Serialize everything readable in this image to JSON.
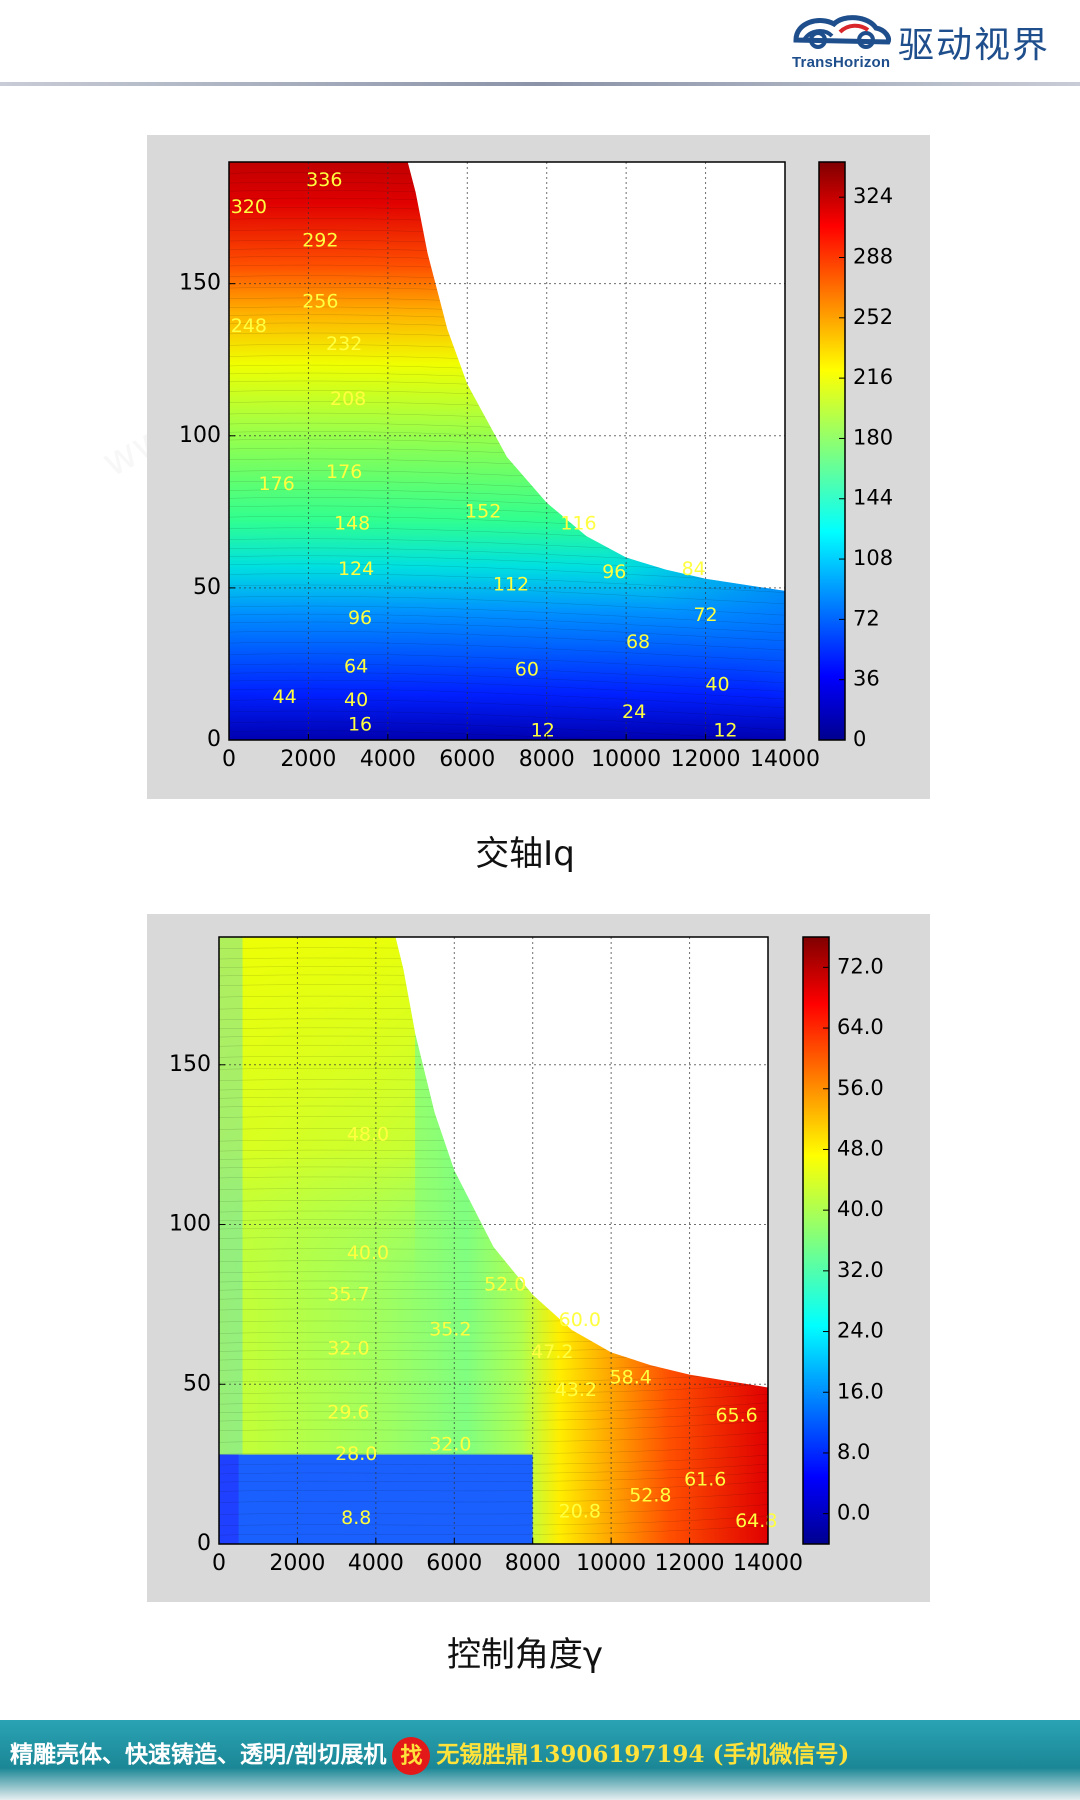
{
  "header": {
    "brand_en": "TransHorizon",
    "brand_cn": "驱动视界",
    "brand_color": "#1e4e8c"
  },
  "captions": [
    "交轴Iq",
    "控制角度γ"
  ],
  "footer": {
    "left_text": "精雕壳体、快速铸造、透明/剖切展机",
    "badge": "找",
    "right_text": "无锡胜鼎13906197194 (手机微信号)"
  },
  "chart_data": [
    {
      "type": "heatmap",
      "x_ticks": [
        "0",
        "2000",
        "4000",
        "6000",
        "8000",
        "10000",
        "12000",
        "14000"
      ],
      "y_ticks": [
        "0",
        "50",
        "100",
        "150"
      ],
      "xlim": [
        0,
        14000
      ],
      "ylim": [
        0,
        190
      ],
      "colorbar_ticks": [
        "0",
        "36",
        "72",
        "108",
        "144",
        "180",
        "216",
        "252",
        "288",
        "324"
      ],
      "colorbar_range": [
        0,
        345
      ],
      "colormap": "jet",
      "grid": true,
      "boundary": [
        [
          0,
          190
        ],
        [
          4500,
          190
        ],
        [
          4700,
          180
        ],
        [
          5000,
          160
        ],
        [
          5500,
          135
        ],
        [
          6000,
          117
        ],
        [
          7000,
          93
        ],
        [
          8000,
          78
        ],
        [
          9000,
          67
        ],
        [
          10000,
          60
        ],
        [
          11000,
          56
        ],
        [
          12000,
          53
        ],
        [
          13000,
          51
        ],
        [
          14000,
          49
        ]
      ],
      "contour_labels": [
        {
          "x": 2400,
          "y": 184,
          "text": "336"
        },
        {
          "x": 500,
          "y": 175,
          "text": "320"
        },
        {
          "x": 2300,
          "y": 164,
          "text": "292"
        },
        {
          "x": 2300,
          "y": 144,
          "text": "256"
        },
        {
          "x": 500,
          "y": 136,
          "text": "248"
        },
        {
          "x": 2900,
          "y": 130,
          "text": "232"
        },
        {
          "x": 3000,
          "y": 112,
          "text": "208"
        },
        {
          "x": 1200,
          "y": 84,
          "text": "176"
        },
        {
          "x": 2900,
          "y": 88,
          "text": "176"
        },
        {
          "x": 3100,
          "y": 71,
          "text": "148"
        },
        {
          "x": 3200,
          "y": 56,
          "text": "124"
        },
        {
          "x": 6400,
          "y": 75,
          "text": "152"
        },
        {
          "x": 8800,
          "y": 71,
          "text": "116"
        },
        {
          "x": 7100,
          "y": 51,
          "text": "112"
        },
        {
          "x": 9700,
          "y": 55,
          "text": "96"
        },
        {
          "x": 11700,
          "y": 56,
          "text": "84"
        },
        {
          "x": 3300,
          "y": 40,
          "text": "96"
        },
        {
          "x": 12000,
          "y": 41,
          "text": "72"
        },
        {
          "x": 10300,
          "y": 32,
          "text": "68"
        },
        {
          "x": 3200,
          "y": 24,
          "text": "64"
        },
        {
          "x": 7500,
          "y": 23,
          "text": "60"
        },
        {
          "x": 1400,
          "y": 14,
          "text": "44"
        },
        {
          "x": 3200,
          "y": 13,
          "text": "40"
        },
        {
          "x": 12300,
          "y": 18,
          "text": "40"
        },
        {
          "x": 10200,
          "y": 9,
          "text": "24"
        },
        {
          "x": 3300,
          "y": 5,
          "text": "16"
        },
        {
          "x": 7900,
          "y": 3,
          "text": "12"
        },
        {
          "x": 12500,
          "y": 3,
          "text": "12"
        }
      ]
    },
    {
      "type": "heatmap",
      "x_ticks": [
        "0",
        "2000",
        "4000",
        "6000",
        "8000",
        "10000",
        "12000",
        "14000"
      ],
      "y_ticks": [
        "0",
        "50",
        "100",
        "150"
      ],
      "xlim": [
        0,
        14000
      ],
      "ylim": [
        0,
        190
      ],
      "colorbar_ticks": [
        "0.0",
        "8.0",
        "16.0",
        "24.0",
        "32.0",
        "40.0",
        "48.0",
        "56.0",
        "64.0",
        "72.0"
      ],
      "colorbar_range": [
        -4,
        76
      ],
      "colormap": "jet",
      "grid": true,
      "boundary": [
        [
          0,
          190
        ],
        [
          4500,
          190
        ],
        [
          4700,
          180
        ],
        [
          5000,
          160
        ],
        [
          5500,
          135
        ],
        [
          6000,
          117
        ],
        [
          7000,
          93
        ],
        [
          8000,
          78
        ],
        [
          9000,
          67
        ],
        [
          10000,
          60
        ],
        [
          11000,
          56
        ],
        [
          12000,
          53
        ],
        [
          13000,
          51
        ],
        [
          14000,
          49
        ]
      ],
      "contour_labels": [
        {
          "x": 3800,
          "y": 128,
          "text": "48.0"
        },
        {
          "x": 3800,
          "y": 91,
          "text": "40.0"
        },
        {
          "x": 3300,
          "y": 78,
          "text": "35.7"
        },
        {
          "x": 5900,
          "y": 67,
          "text": "35.2"
        },
        {
          "x": 3300,
          "y": 61,
          "text": "32.0"
        },
        {
          "x": 3300,
          "y": 41,
          "text": "29.6"
        },
        {
          "x": 3500,
          "y": 28,
          "text": "28.0"
        },
        {
          "x": 5900,
          "y": 31,
          "text": "32.0"
        },
        {
          "x": 7300,
          "y": 81,
          "text": "52.0"
        },
        {
          "x": 9200,
          "y": 70,
          "text": "60.0"
        },
        {
          "x": 8500,
          "y": 60,
          "text": "47.2"
        },
        {
          "x": 9100,
          "y": 48,
          "text": "43.2"
        },
        {
          "x": 10500,
          "y": 52,
          "text": "58.4"
        },
        {
          "x": 13200,
          "y": 40,
          "text": "65.6"
        },
        {
          "x": 3500,
          "y": 8,
          "text": "8.8"
        },
        {
          "x": 9200,
          "y": 10,
          "text": "20.8"
        },
        {
          "x": 11000,
          "y": 15,
          "text": "52.8"
        },
        {
          "x": 12400,
          "y": 20,
          "text": "61.6"
        },
        {
          "x": 13700,
          "y": 7,
          "text": "64.8"
        }
      ]
    }
  ]
}
